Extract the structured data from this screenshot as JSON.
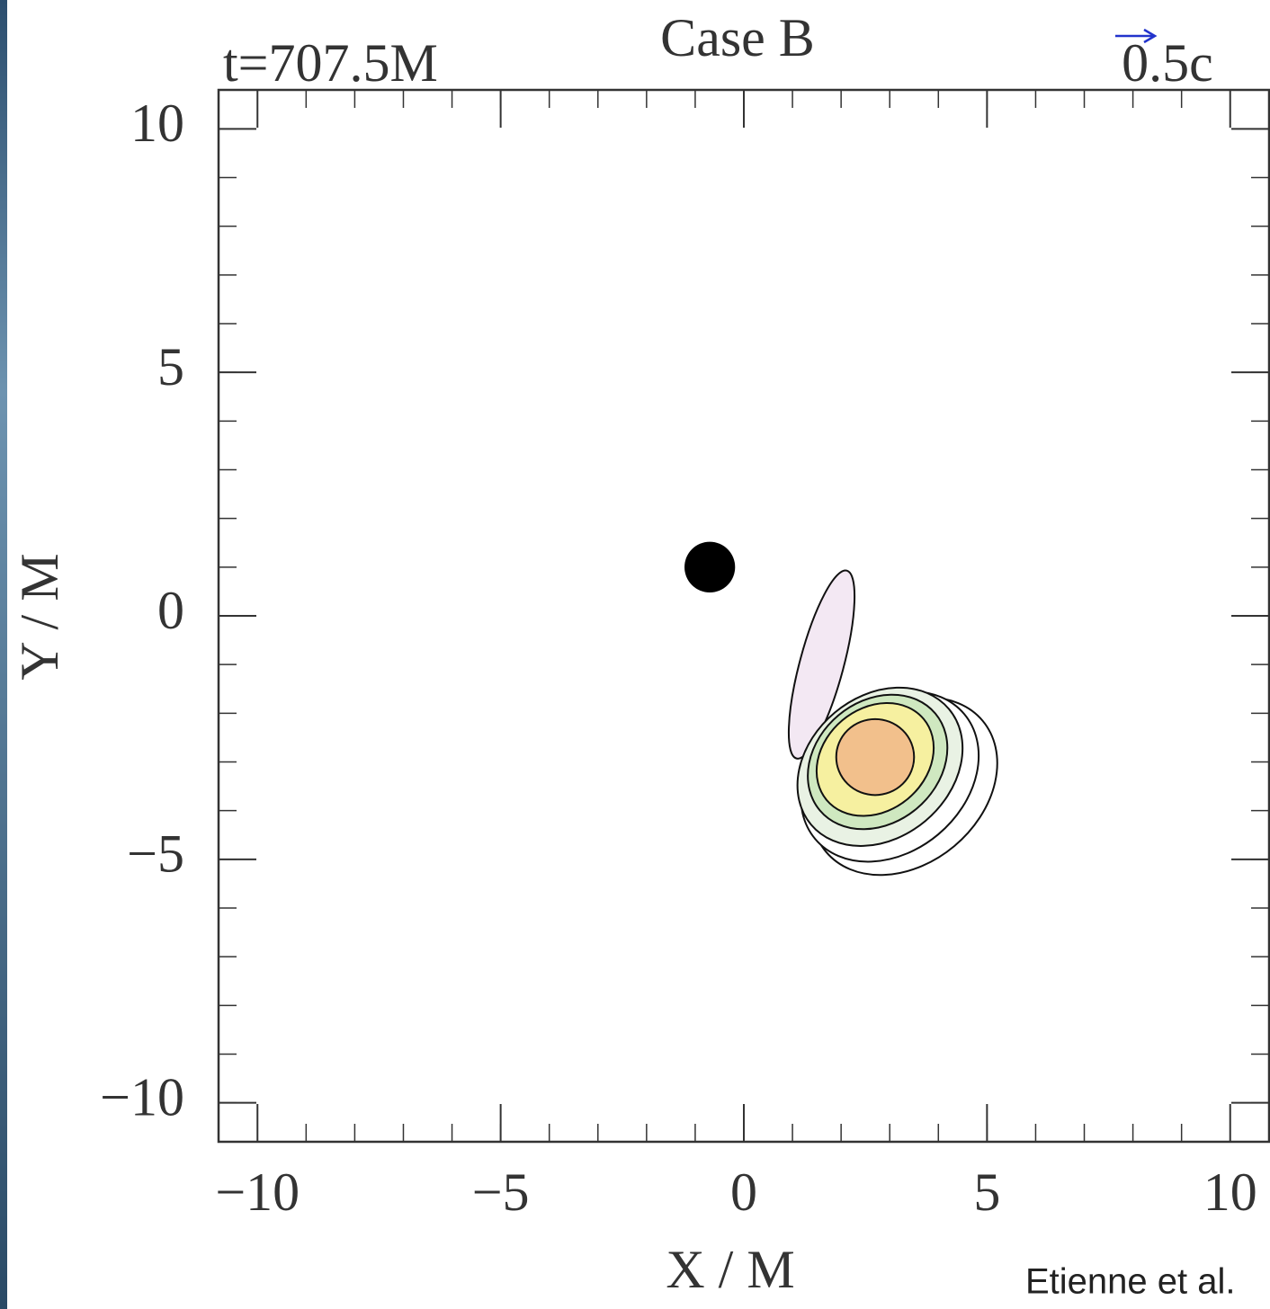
{
  "chart_data": {
    "type": "contour",
    "title": "Case B",
    "annotation": "t=707.5M",
    "vector_scale_label": "0.5c",
    "x_label": "X / M",
    "y_label": "Y / M",
    "credit": "Etienne et al.",
    "xlim": [
      -10.8,
      10.8
    ],
    "ylim": [
      -10.8,
      10.8
    ],
    "xticks": [
      {
        "value": -10,
        "label": "−10"
      },
      {
        "value": -5,
        "label": "−5"
      },
      0,
      5,
      10
    ],
    "yticks": [
      {
        "value": -10,
        "label": "−10"
      },
      {
        "value": -5,
        "label": "−5"
      },
      0,
      5,
      10
    ],
    "minor_tick_step": 1,
    "black_hole": {
      "x": -0.7,
      "y": 1.0,
      "r": 0.52,
      "color": "#000000"
    },
    "contours": [
      {
        "cx": 3.3,
        "cy": -3.5,
        "rx": 2.1,
        "ry": 1.6,
        "angle": -40,
        "fill": "#ffffff"
      },
      {
        "cx": 1.6,
        "cy": -1.0,
        "rx": 2.0,
        "ry": 0.45,
        "angle": -75,
        "fill": "#f3e8f3"
      },
      {
        "cx": 3.0,
        "cy": -3.3,
        "rx": 2.0,
        "ry": 1.55,
        "angle": -40,
        "fill": "#ffffff"
      },
      {
        "cx": 2.8,
        "cy": -3.1,
        "rx": 1.85,
        "ry": 1.45,
        "angle": -40,
        "fill": "#e9f2e4"
      },
      {
        "cx": 2.75,
        "cy": -3.0,
        "rx": 1.55,
        "ry": 1.25,
        "angle": -40,
        "fill": "#cfe8c0"
      },
      {
        "cx": 2.7,
        "cy": -2.95,
        "rx": 1.3,
        "ry": 1.05,
        "angle": -40,
        "fill": "#f6f0a0"
      },
      {
        "cx": 2.7,
        "cy": -2.9,
        "rx": 0.8,
        "ry": 0.78,
        "angle": 0,
        "fill": "#f2c08c"
      }
    ]
  }
}
